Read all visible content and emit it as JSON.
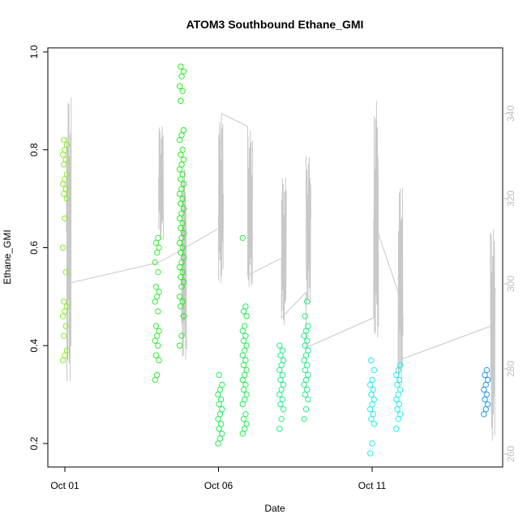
{
  "chart_data": {
    "type": "scatter",
    "title": "ATOM3 Southbound Ethane_GMI",
    "xlabel": "Date",
    "ylabel": "Ethane_GMI",
    "x_ticks": [
      "Oct 01",
      "Oct 06",
      "Oct 11"
    ],
    "xlim": [
      0.0,
      14.0
    ],
    "ylim": [
      0.15,
      1.0
    ],
    "y_ticks": [
      "0.2",
      "0.4",
      "0.6",
      "0.8",
      "1.0"
    ],
    "y2_ticks": [
      "260",
      "280",
      "300",
      "320",
      "340"
    ],
    "y2lim": [
      255,
      355
    ],
    "series": [
      {
        "kind": "points",
        "clusters": [
          {
            "x": 0.0,
            "values": [
              0.37,
              0.38,
              0.39,
              0.42,
              0.44,
              0.46,
              0.47,
              0.48,
              0.49,
              0.55,
              0.6,
              0.66,
              0.7,
              0.71,
              0.72,
              0.73,
              0.74,
              0.75,
              0.77,
              0.78,
              0.79,
              0.8,
              0.81,
              0.82
            ],
            "color": "#88ee22"
          },
          {
            "x": 3.0,
            "values": [
              0.33,
              0.34,
              0.37,
              0.38,
              0.4,
              0.41,
              0.42,
              0.43,
              0.44,
              0.47,
              0.49,
              0.5,
              0.51,
              0.52,
              0.55,
              0.57,
              0.59,
              0.6,
              0.61,
              0.62
            ],
            "color": "#33ee33"
          },
          {
            "x": 3.8,
            "values": [
              0.4,
              0.42,
              0.46,
              0.48,
              0.49,
              0.5,
              0.52,
              0.53,
              0.54,
              0.55,
              0.56,
              0.57,
              0.58,
              0.59,
              0.6,
              0.61,
              0.62,
              0.63,
              0.64,
              0.65,
              0.66,
              0.67,
              0.68,
              0.69,
              0.7,
              0.71,
              0.72,
              0.73,
              0.74,
              0.75,
              0.76,
              0.77,
              0.78,
              0.79,
              0.8,
              0.82,
              0.83,
              0.84,
              0.9,
              0.92,
              0.93,
              0.95,
              0.96,
              0.97
            ],
            "color": "#22ee22"
          },
          {
            "x": 5.05,
            "values": [
              0.2,
              0.21,
              0.22,
              0.23,
              0.24,
              0.25,
              0.26,
              0.27,
              0.28,
              0.29,
              0.3,
              0.31,
              0.32,
              0.34
            ],
            "color": "#22ee55"
          },
          {
            "x": 5.85,
            "values": [
              0.22,
              0.23,
              0.24,
              0.25,
              0.26,
              0.28,
              0.29,
              0.3,
              0.31,
              0.32,
              0.33,
              0.34,
              0.35,
              0.36,
              0.37,
              0.38,
              0.39,
              0.4,
              0.41,
              0.42,
              0.43,
              0.44,
              0.46,
              0.47,
              0.48,
              0.62
            ],
            "color": "#22ee55"
          },
          {
            "x": 7.05,
            "values": [
              0.23,
              0.25,
              0.27,
              0.28,
              0.29,
              0.3,
              0.31,
              0.32,
              0.33,
              0.34,
              0.35,
              0.36,
              0.37,
              0.38,
              0.39,
              0.4
            ],
            "color": "#22ee88"
          },
          {
            "x": 7.85,
            "values": [
              0.25,
              0.27,
              0.29,
              0.3,
              0.31,
              0.32,
              0.33,
              0.34,
              0.35,
              0.36,
              0.37,
              0.38,
              0.39,
              0.4,
              0.41,
              0.42,
              0.43,
              0.44,
              0.46,
              0.49
            ],
            "color": "#22ee88"
          },
          {
            "x": 10.0,
            "values": [
              0.18,
              0.2,
              0.24,
              0.25,
              0.26,
              0.27,
              0.28,
              0.29,
              0.3,
              0.31,
              0.32,
              0.33,
              0.35,
              0.37
            ],
            "color": "#22eeee"
          },
          {
            "x": 10.85,
            "values": [
              0.23,
              0.25,
              0.26,
              0.27,
              0.28,
              0.29,
              0.3,
              0.31,
              0.32,
              0.33,
              0.34,
              0.35,
              0.36
            ],
            "color": "#22eeee"
          },
          {
            "x": 13.7,
            "values": [
              0.26,
              0.27,
              0.28,
              0.29,
              0.3,
              0.31,
              0.32,
              0.33,
              0.34,
              0.35
            ],
            "color": "#2299ee"
          }
        ]
      },
      {
        "kind": "gray-line-right-axis",
        "color": "#c8c8c8",
        "segments": [
          {
            "x": 0.05,
            "min": 277,
            "max": 344
          },
          {
            "x": 3.05,
            "min": 310,
            "max": 337
          },
          {
            "x": 3.8,
            "min": 282,
            "max": 327
          },
          {
            "x": 5.0,
            "min": 300,
            "max": 338
          },
          {
            "x": 5.95,
            "min": 299,
            "max": 336
          },
          {
            "x": 7.05,
            "min": 290,
            "max": 325
          },
          {
            "x": 7.85,
            "min": 295,
            "max": 330
          },
          {
            "x": 10.05,
            "min": 287,
            "max": 343
          },
          {
            "x": 10.85,
            "min": 276,
            "max": 323
          },
          {
            "x": 13.85,
            "min": 263,
            "max": 313
          }
        ],
        "connectors": [
          [
            0.05,
            300
          ],
          [
            3.05,
            305
          ],
          [
            3.8,
            308
          ],
          [
            5.0,
            313
          ],
          [
            5.1,
            340
          ],
          [
            5.95,
            337
          ],
          [
            5.95,
            302
          ],
          [
            7.05,
            306
          ],
          [
            7.05,
            292
          ],
          [
            7.85,
            298
          ],
          [
            7.85,
            285
          ],
          [
            10.05,
            292
          ],
          [
            10.05,
            315
          ],
          [
            10.85,
            298
          ],
          [
            10.85,
            282
          ],
          [
            13.85,
            290
          ]
        ]
      }
    ],
    "grid": false,
    "legend": "none"
  }
}
